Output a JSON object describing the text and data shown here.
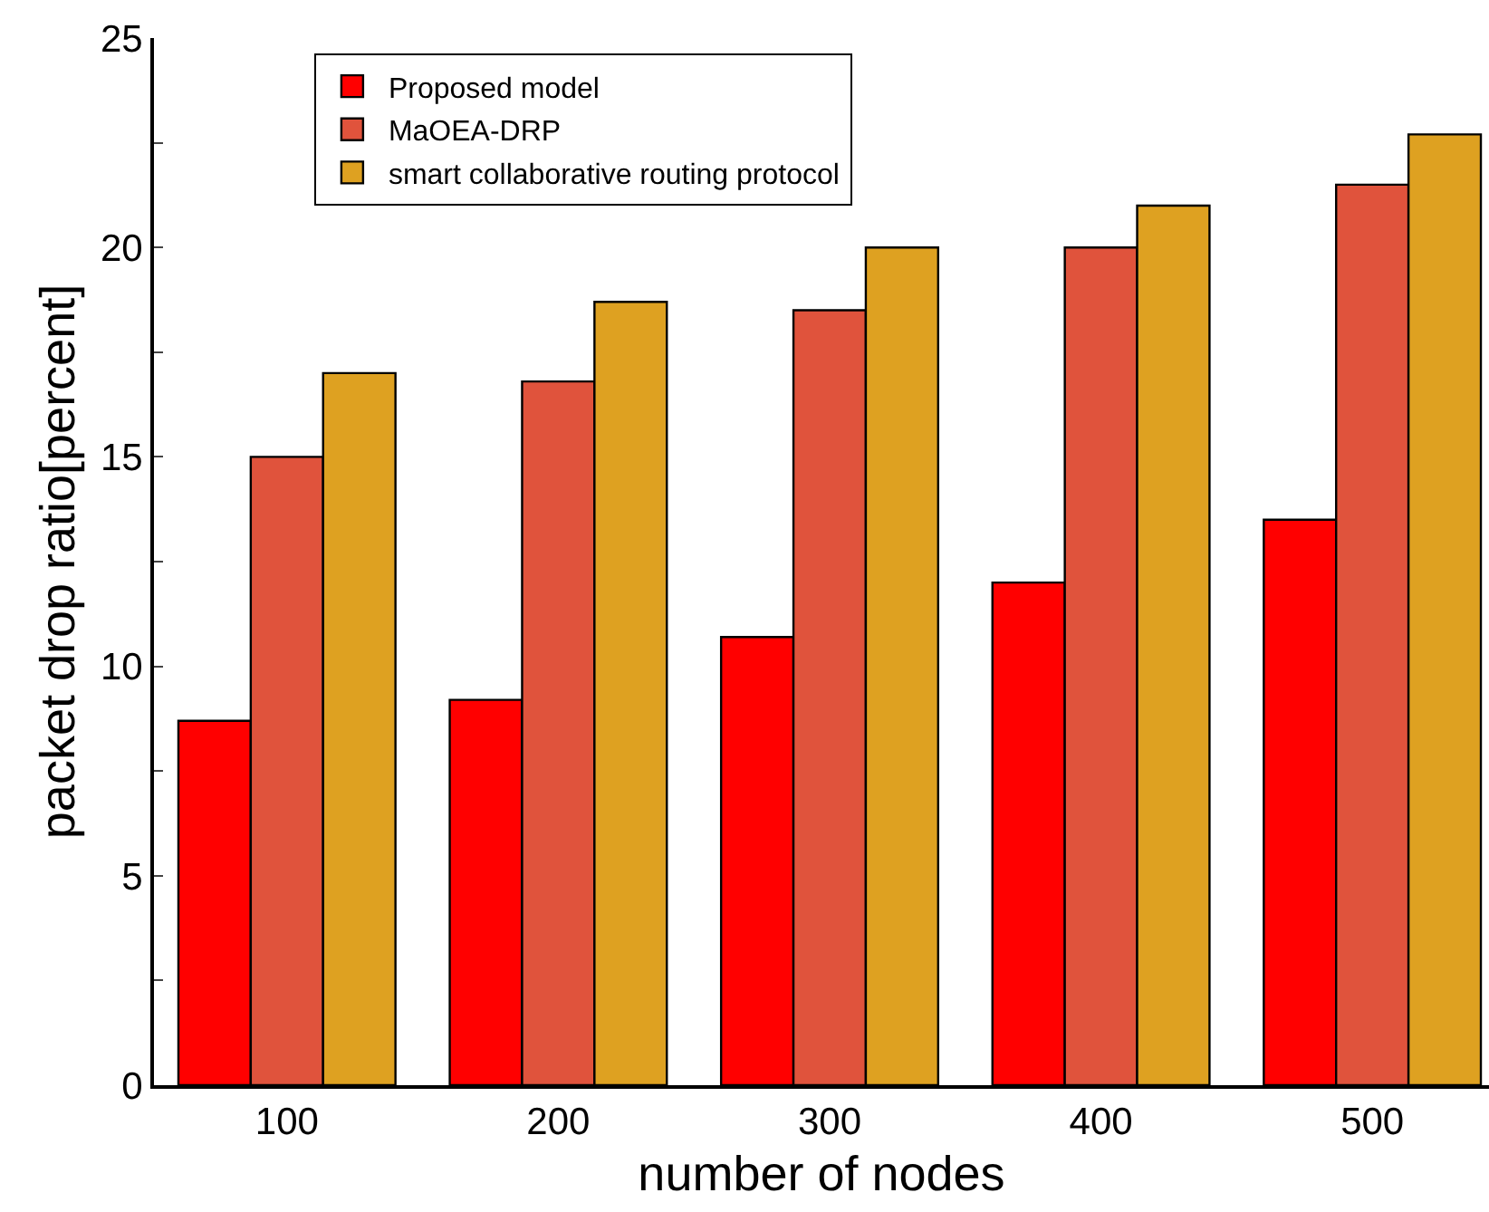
{
  "chart_data": {
    "type": "bar",
    "xlabel": "number of nodes",
    "ylabel": "packet drop ratio[percent]",
    "categories": [
      "100",
      "200",
      "300",
      "400",
      "500"
    ],
    "series": [
      {
        "name": "Proposed model",
        "color": "#ff0000",
        "values": [
          8.7,
          9.2,
          10.7,
          12.0,
          13.5
        ]
      },
      {
        "name": "MaOEA-DRP",
        "color": "#e0533c",
        "values": [
          15.0,
          16.8,
          18.5,
          20.0,
          21.5
        ]
      },
      {
        "name": "smart collaborative routing protocol",
        "color": "#dea121",
        "values": [
          17.0,
          18.7,
          20.0,
          21.0,
          22.7
        ]
      }
    ],
    "ylim": [
      0,
      25
    ],
    "yticks": [
      0,
      {
        "value": 2.5,
        "label": null
      },
      5,
      {
        "value": 7.5,
        "label": null
      },
      10,
      {
        "value": 12.5,
        "label": null
      },
      15,
      {
        "value": 17.5,
        "label": null
      },
      20,
      {
        "value": 22.5,
        "label": null
      },
      25
    ],
    "legend": "top left"
  }
}
